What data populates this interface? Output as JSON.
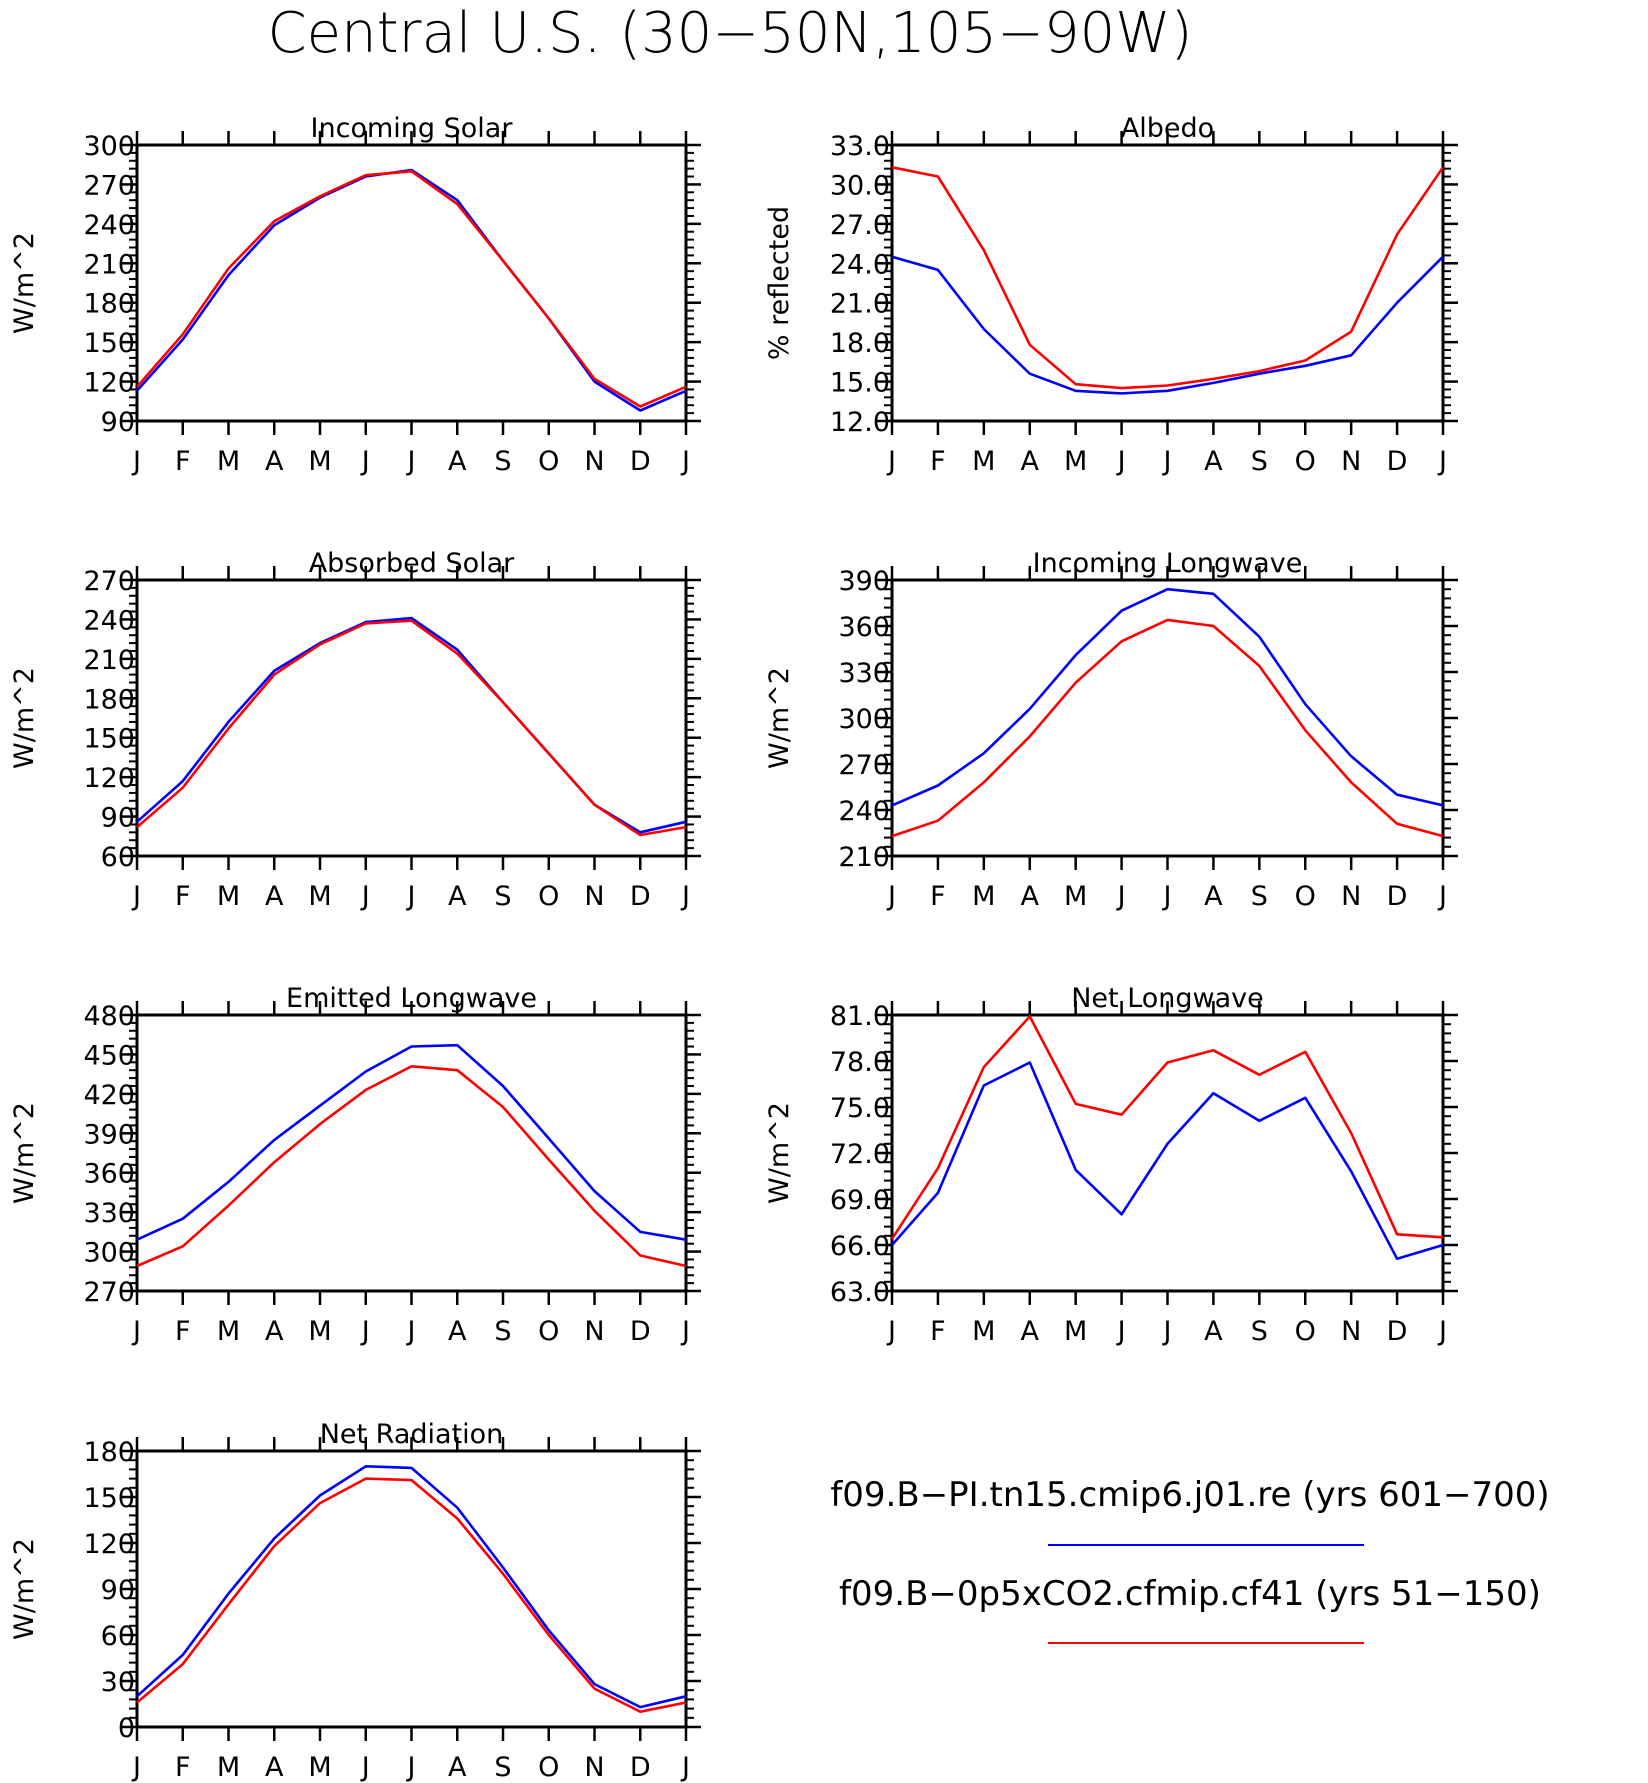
{
  "title": "Central U.S. (30−50N,105−90W)",
  "colors": {
    "series_1": "#0000ff",
    "series_2": "#ff0000",
    "axis": "#000000"
  },
  "legend": {
    "entries": [
      {
        "label": "f09.B−PI.tn15.cmip6.j01.re (yrs 601−700)",
        "color": "#0000ff"
      },
      {
        "label": "f09.B−0p5xCO2.cfmip.cf41 (yrs 51−150)",
        "color": "#ff0000"
      }
    ]
  },
  "chart_data": [
    {
      "type": "line",
      "title": "Incoming Solar",
      "ylabel": "W/m^2",
      "categories": [
        "J",
        "F",
        "M",
        "A",
        "M",
        "J",
        "J",
        "A",
        "S",
        "O",
        "N",
        "D",
        "J"
      ],
      "ylim": [
        90,
        300
      ],
      "yticks": [
        "90",
        "120",
        "150",
        "180",
        "210",
        "240",
        "270",
        "300"
      ],
      "grid": false,
      "series": [
        {
          "name": "f09.B−PI.tn15.cmip6.j01.re (yrs 601−700)",
          "color": "#0000ff",
          "values": [
            113,
            152,
            201,
            239,
            260,
            276,
            281,
            258,
            212,
            168,
            120,
            98,
            113
          ]
        },
        {
          "name": "f09.B−0p5xCO2.cfmip.cf41 (yrs 51−150)",
          "color": "#ff0000",
          "values": [
            116,
            156,
            206,
            242,
            261,
            277,
            280,
            255,
            212,
            168,
            122,
            101,
            116
          ]
        }
      ]
    },
    {
      "type": "line",
      "title": "Albedo",
      "ylabel": "% reflected",
      "categories": [
        "J",
        "F",
        "M",
        "A",
        "M",
        "J",
        "J",
        "A",
        "S",
        "O",
        "N",
        "D",
        "J"
      ],
      "ylim": [
        12.0,
        33.0
      ],
      "yticks": [
        "12.0",
        "15.0",
        "18.0",
        "21.0",
        "24.0",
        "27.0",
        "30.0",
        "33.0"
      ],
      "grid": false,
      "series": [
        {
          "name": "f09.B−PI.tn15.cmip6.j01.re (yrs 601−700)",
          "color": "#0000ff",
          "values": [
            24.5,
            23.5,
            19.0,
            15.6,
            14.3,
            14.1,
            14.3,
            14.9,
            15.6,
            16.2,
            17.0,
            21.0,
            24.5
          ]
        },
        {
          "name": "f09.B−0p5xCO2.cfmip.cf41 (yrs 51−150)",
          "color": "#ff0000",
          "values": [
            31.3,
            30.6,
            25.0,
            17.8,
            14.8,
            14.5,
            14.7,
            15.2,
            15.8,
            16.6,
            18.8,
            26.2,
            31.3
          ]
        }
      ]
    },
    {
      "type": "line",
      "title": "Absorbed Solar",
      "ylabel": "W/m^2",
      "categories": [
        "J",
        "F",
        "M",
        "A",
        "M",
        "J",
        "J",
        "A",
        "S",
        "O",
        "N",
        "D",
        "J"
      ],
      "ylim": [
        60,
        270
      ],
      "yticks": [
        "60",
        "90",
        "120",
        "150",
        "180",
        "210",
        "240",
        "270"
      ],
      "grid": false,
      "series": [
        {
          "name": "f09.B−PI.tn15.cmip6.j01.re (yrs 601−700)",
          "color": "#0000ff",
          "values": [
            86,
            117,
            162,
            201,
            222,
            238,
            241,
            217,
            177,
            138,
            99,
            78,
            86
          ]
        },
        {
          "name": "f09.B−0p5xCO2.cfmip.cf41 (yrs 51−150)",
          "color": "#ff0000",
          "values": [
            82,
            112,
            157,
            198,
            221,
            237,
            239,
            214,
            177,
            138,
            99,
            76,
            82
          ]
        }
      ]
    },
    {
      "type": "line",
      "title": "Incoming Longwave",
      "ylabel": "W/m^2",
      "categories": [
        "J",
        "F",
        "M",
        "A",
        "M",
        "J",
        "J",
        "A",
        "S",
        "O",
        "N",
        "D",
        "J"
      ],
      "ylim": [
        210,
        390
      ],
      "yticks": [
        "210",
        "240",
        "270",
        "300",
        "330",
        "360",
        "390"
      ],
      "grid": false,
      "series": [
        {
          "name": "f09.B−PI.tn15.cmip6.j01.re (yrs 601−700)",
          "color": "#0000ff",
          "values": [
            243,
            256,
            277,
            306,
            341,
            370,
            384,
            381,
            353,
            309,
            275,
            250,
            243
          ]
        },
        {
          "name": "f09.B−0p5xCO2.cfmip.cf41 (yrs 51−150)",
          "color": "#ff0000",
          "values": [
            223,
            233,
            258,
            288,
            323,
            350,
            364,
            360,
            334,
            292,
            258,
            231,
            223
          ]
        }
      ]
    },
    {
      "type": "line",
      "title": "Emitted Longwave",
      "ylabel": "W/m^2",
      "categories": [
        "J",
        "F",
        "M",
        "A",
        "M",
        "J",
        "J",
        "A",
        "S",
        "O",
        "N",
        "D",
        "J"
      ],
      "ylim": [
        270,
        480
      ],
      "yticks": [
        "270",
        "300",
        "330",
        "360",
        "390",
        "420",
        "450",
        "480"
      ],
      "grid": false,
      "series": [
        {
          "name": "f09.B−PI.tn15.cmip6.j01.re (yrs 601−700)",
          "color": "#0000ff",
          "values": [
            309,
            325,
            353,
            385,
            411,
            437,
            456,
            457,
            426,
            386,
            346,
            315,
            309
          ]
        },
        {
          "name": "f09.B−0p5xCO2.cfmip.cf41 (yrs 51−150)",
          "color": "#ff0000",
          "values": [
            289,
            304,
            335,
            368,
            397,
            423,
            441,
            438,
            410,
            370,
            331,
            297,
            289
          ]
        }
      ]
    },
    {
      "type": "line",
      "title": "Net Longwave",
      "ylabel": "W/m^2",
      "categories": [
        "J",
        "F",
        "M",
        "A",
        "M",
        "J",
        "J",
        "A",
        "S",
        "O",
        "N",
        "D",
        "J"
      ],
      "ylim": [
        63.0,
        81.0
      ],
      "yticks": [
        "63.0",
        "66.0",
        "69.0",
        "72.0",
        "75.0",
        "78.0",
        "81.0"
      ],
      "grid": false,
      "series": [
        {
          "name": "f09.B−PI.tn15.cmip6.j01.re (yrs 601−700)",
          "color": "#0000ff",
          "values": [
            66.0,
            69.4,
            76.4,
            77.9,
            70.9,
            68.0,
            72.6,
            75.9,
            74.1,
            75.6,
            70.8,
            65.1,
            66.0
          ]
        },
        {
          "name": "f09.B−0p5xCO2.cfmip.cf41 (yrs 51−150)",
          "color": "#ff0000",
          "values": [
            66.4,
            71.0,
            77.6,
            80.9,
            75.2,
            74.5,
            77.9,
            78.7,
            77.1,
            78.6,
            73.3,
            66.7,
            66.5
          ]
        }
      ]
    },
    {
      "type": "line",
      "title": "Net Radiation",
      "ylabel": "W/m^2",
      "categories": [
        "J",
        "F",
        "M",
        "A",
        "M",
        "J",
        "J",
        "A",
        "S",
        "O",
        "N",
        "D",
        "J"
      ],
      "ylim": [
        0,
        180
      ],
      "yticks": [
        "0",
        "30",
        "60",
        "90",
        "120",
        "150",
        "180"
      ],
      "grid": false,
      "series": [
        {
          "name": "f09.B−PI.tn15.cmip6.j01.re (yrs 601−700)",
          "color": "#0000ff",
          "values": [
            20,
            47,
            87,
            123,
            151,
            170,
            169,
            143,
            104,
            63,
            28,
            13,
            20
          ]
        },
        {
          "name": "f09.B−0p5xCO2.cfmip.cf41 (yrs 51−150)",
          "color": "#ff0000",
          "values": [
            16,
            41,
            80,
            118,
            146,
            162,
            161,
            136,
            100,
            60,
            25,
            10,
            16
          ]
        }
      ]
    }
  ]
}
